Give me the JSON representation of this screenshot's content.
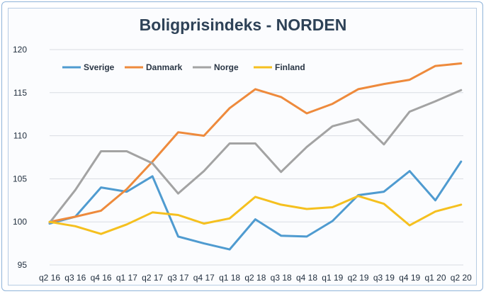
{
  "chart_data": {
    "type": "line",
    "title": "Boligprisindeks - NORDEN",
    "xlabel": "",
    "ylabel": "",
    "ylim": [
      95,
      120
    ],
    "yticks": [
      "95",
      "100",
      "105",
      "110",
      "115",
      "120"
    ],
    "categories": [
      "q2 16",
      "q3 16",
      "q4 16",
      "q1 17",
      "q2 17",
      "q3 17",
      "q4 17",
      "q1 18",
      "q2 18",
      "q3 18",
      "q4 18",
      "q1 19",
      "q2 19",
      "q3 19",
      "q4 19",
      "q1 20",
      "q2 20"
    ],
    "legend_position": "top-left",
    "grid": true,
    "series": [
      {
        "name": "Sverige",
        "color": "#4f9bd0",
        "values": [
          99.8,
          100.6,
          104.0,
          103.5,
          105.3,
          98.3,
          97.5,
          96.8,
          100.3,
          98.4,
          98.3,
          100.1,
          103.1,
          103.5,
          105.9,
          102.5,
          107.0
        ]
      },
      {
        "name": "Danmark",
        "color": "#ee8a3c",
        "values": [
          100.0,
          100.6,
          101.3,
          103.8,
          107.0,
          110.4,
          110.0,
          113.2,
          115.4,
          114.5,
          112.6,
          113.7,
          115.4,
          116.0,
          116.5,
          118.1,
          118.4
        ]
      },
      {
        "name": "Norge",
        "color": "#a3a3a3",
        "values": [
          99.9,
          103.7,
          108.2,
          108.2,
          106.8,
          103.3,
          105.9,
          109.1,
          109.1,
          105.8,
          108.7,
          111.1,
          111.9,
          109.0,
          112.8,
          114.0,
          115.3
        ]
      },
      {
        "name": "Finland",
        "color": "#f5c01f",
        "values": [
          100.0,
          99.5,
          98.6,
          99.7,
          101.1,
          100.8,
          99.8,
          100.4,
          102.9,
          102.0,
          101.5,
          101.7,
          103.0,
          102.1,
          99.6,
          101.2,
          102.0
        ]
      }
    ]
  }
}
